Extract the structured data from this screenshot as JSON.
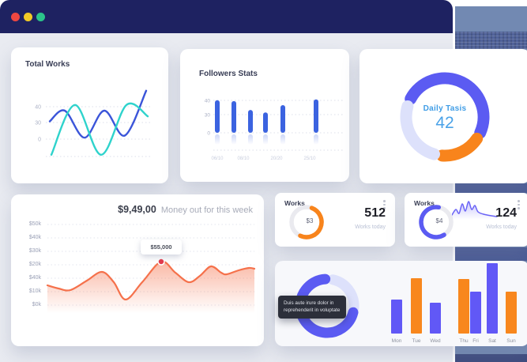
{
  "window": {
    "traffic_lights": [
      {
        "name": "close",
        "color": "#ee4741"
      },
      {
        "name": "minimize",
        "color": "#f2ca26"
      },
      {
        "name": "maximize",
        "color": "#2bc48a"
      }
    ]
  },
  "colors": {
    "header_bg": "#1e2261",
    "content_bg": "#e9ebf1",
    "panel_base": "#7289b2",
    "panel_band_dark": "#4a5b95",
    "panel_bottom": "#3e4b7e",
    "purple": "#5b5bf2",
    "lavender": "#dde1fb",
    "orange": "#f8841c",
    "coral": "#f5714b",
    "blue": "#3b55d9",
    "teal": "#2fd3cc",
    "bar_blue": "#3b63e0"
  },
  "cards": {
    "total_works": {
      "title": "Total Works",
      "chart_data": {
        "type": "line",
        "y_ticks": [
          "40",
          "30",
          "0"
        ],
        "grid": "dotted",
        "series": [
          {
            "name": "blue",
            "color": "#3b55d9",
            "points": [
              [
                3,
                45
              ],
              [
                22,
                30
              ],
              [
                47,
                68
              ],
              [
                72,
                30
              ],
              [
                98,
                65
              ],
              [
                125,
                2
              ]
            ]
          },
          {
            "name": "teal",
            "color": "#2fd3cc",
            "points": [
              [
                5,
                92
              ],
              [
                35,
                22
              ],
              [
                68,
                92
              ],
              [
                100,
                22
              ],
              [
                127,
                38
              ]
            ]
          }
        ]
      }
    },
    "followers": {
      "title": "Followers Stats",
      "chart_data": {
        "type": "bar",
        "values": [
          40,
          39,
          28,
          25,
          34,
          41
        ],
        "y_ticks": [
          "40",
          "30",
          "0"
        ],
        "x_labels": [
          "06/10",
          "08/10",
          "20/20",
          "25/10"
        ],
        "bar_color": "#3b63e0"
      }
    },
    "daily_tasks": {
      "label": "Daily Tasis",
      "value": "42",
      "chart_data": {
        "type": "pie",
        "segments": [
          {
            "name": "primary",
            "color": "#5b5bf2",
            "start": -62,
            "sweep": 176
          },
          {
            "name": "secondary",
            "color": "#f8841c",
            "start": 124,
            "sweep": 60
          },
          {
            "name": "tertiary",
            "color": "#dde1fb",
            "start": 196,
            "sweep": 90
          }
        ]
      }
    },
    "money": {
      "amount": "$9,49,00",
      "label": "Money out for this week",
      "tooltip": "$55,000",
      "chart_data": {
        "type": "area",
        "y_labels": [
          "$50k",
          "$40k",
          "$30k",
          "$20k",
          "$40k",
          "$10k",
          "$0k"
        ],
        "line_color": "#f5714b",
        "dot_color": "#e3394b",
        "dot_index": 8,
        "points": [
          [
            0,
            66
          ],
          [
            14,
            70
          ],
          [
            29,
            72
          ],
          [
            50,
            60
          ],
          [
            69,
            49
          ],
          [
            84,
            62
          ],
          [
            99,
            84
          ],
          [
            120,
            62
          ],
          [
            144,
            36
          ],
          [
            162,
            50
          ],
          [
            179,
            62
          ],
          [
            193,
            54
          ],
          [
            207,
            42
          ],
          [
            220,
            50
          ],
          [
            227,
            52
          ],
          [
            242,
            47
          ],
          [
            255,
            44
          ],
          [
            262,
            45
          ]
        ]
      }
    },
    "works_a": {
      "title": "Works",
      "center": "$3",
      "value": "512",
      "sub": "Works today",
      "chart_data": {
        "type": "gauge",
        "color": "#f8841c",
        "track": "#eaeaef",
        "start": 20,
        "sweep": 185
      }
    },
    "works_b": {
      "title": "Works",
      "center": "$4",
      "value": "124",
      "sub": "Works today",
      "chart_data": {
        "type": "gauge",
        "color": "#5b5bf2",
        "track": "#eaeaef",
        "start": 148,
        "sweep": 222
      },
      "sparkline": {
        "color": "#6a63f6",
        "points": [
          [
            0,
            20
          ],
          [
            5,
            13
          ],
          [
            9,
            18
          ],
          [
            13,
            6
          ],
          [
            17,
            15
          ],
          [
            21,
            3
          ],
          [
            25,
            13
          ],
          [
            29,
            8
          ],
          [
            33,
            16
          ],
          [
            40,
            19
          ],
          [
            50,
            21
          ],
          [
            57,
            22
          ]
        ]
      }
    },
    "weekly": {
      "tooltip": "Duis aute irure dolor in reprehenderit in voluptate",
      "chart_data": [
        {
          "type": "pie",
          "segments": [
            {
              "name": "remainder",
              "color": "#dde1fb",
              "start": 12,
              "sweep": 82
            },
            {
              "name": "primary",
              "color": "#5b5bf2",
              "start": 104,
              "sweep": 252
            }
          ]
        },
        {
          "type": "bar",
          "categories": [
            "Mon",
            "Tue",
            "Wed",
            "Thu",
            "Fri",
            "Sat",
            "Sun"
          ],
          "values": [
            43,
            70,
            39,
            69,
            53,
            89,
            53
          ],
          "colors": [
            "#6158f6",
            "#f8871d",
            "#6158f6",
            "#f8871d",
            "#6158f6",
            "#6158f6",
            "#f8871d"
          ]
        }
      ]
    }
  }
}
